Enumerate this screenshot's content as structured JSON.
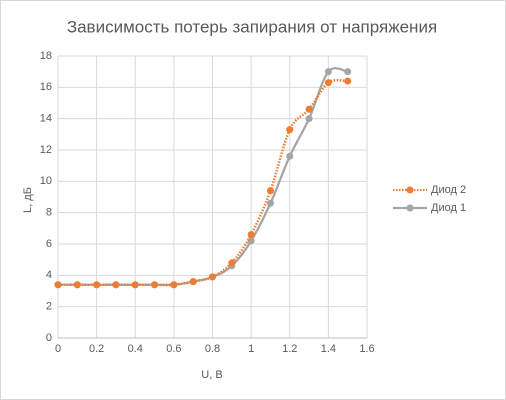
{
  "chart_data": {
    "type": "line",
    "title": "Зависимость потерь запирания от напряжения",
    "x_label": "U, В",
    "y_label": "L, дБ",
    "x": [
      0,
      0.1,
      0.2,
      0.3,
      0.4,
      0.5,
      0.6,
      0.7,
      0.8,
      0.9,
      1.0,
      1.1,
      1.2,
      1.3,
      1.4,
      1.5
    ],
    "series": [
      {
        "name": "Диод 2",
        "color": "#ED7D31",
        "dash": "dotted",
        "values": [
          3.4,
          3.4,
          3.4,
          3.4,
          3.4,
          3.4,
          3.4,
          3.6,
          3.9,
          4.8,
          6.6,
          9.4,
          13.3,
          14.6,
          16.3,
          16.4
        ]
      },
      {
        "name": "Диод 1",
        "color": "#A5A5A5",
        "dash": "solid",
        "values": [
          3.4,
          3.4,
          3.4,
          3.4,
          3.4,
          3.4,
          3.4,
          3.6,
          3.9,
          4.6,
          6.2,
          8.6,
          11.6,
          14.0,
          17.0,
          17.0
        ]
      }
    ],
    "xlim": [
      0,
      1.6
    ],
    "xticks": [
      0,
      0.2,
      0.4,
      0.6,
      0.8,
      1,
      1.2,
      1.4,
      1.6
    ],
    "ylim": [
      0,
      18
    ],
    "yticks": [
      0,
      2,
      4,
      6,
      8,
      10,
      12,
      14,
      16,
      18
    ],
    "grid": true,
    "smooth": true,
    "legend": "right"
  }
}
